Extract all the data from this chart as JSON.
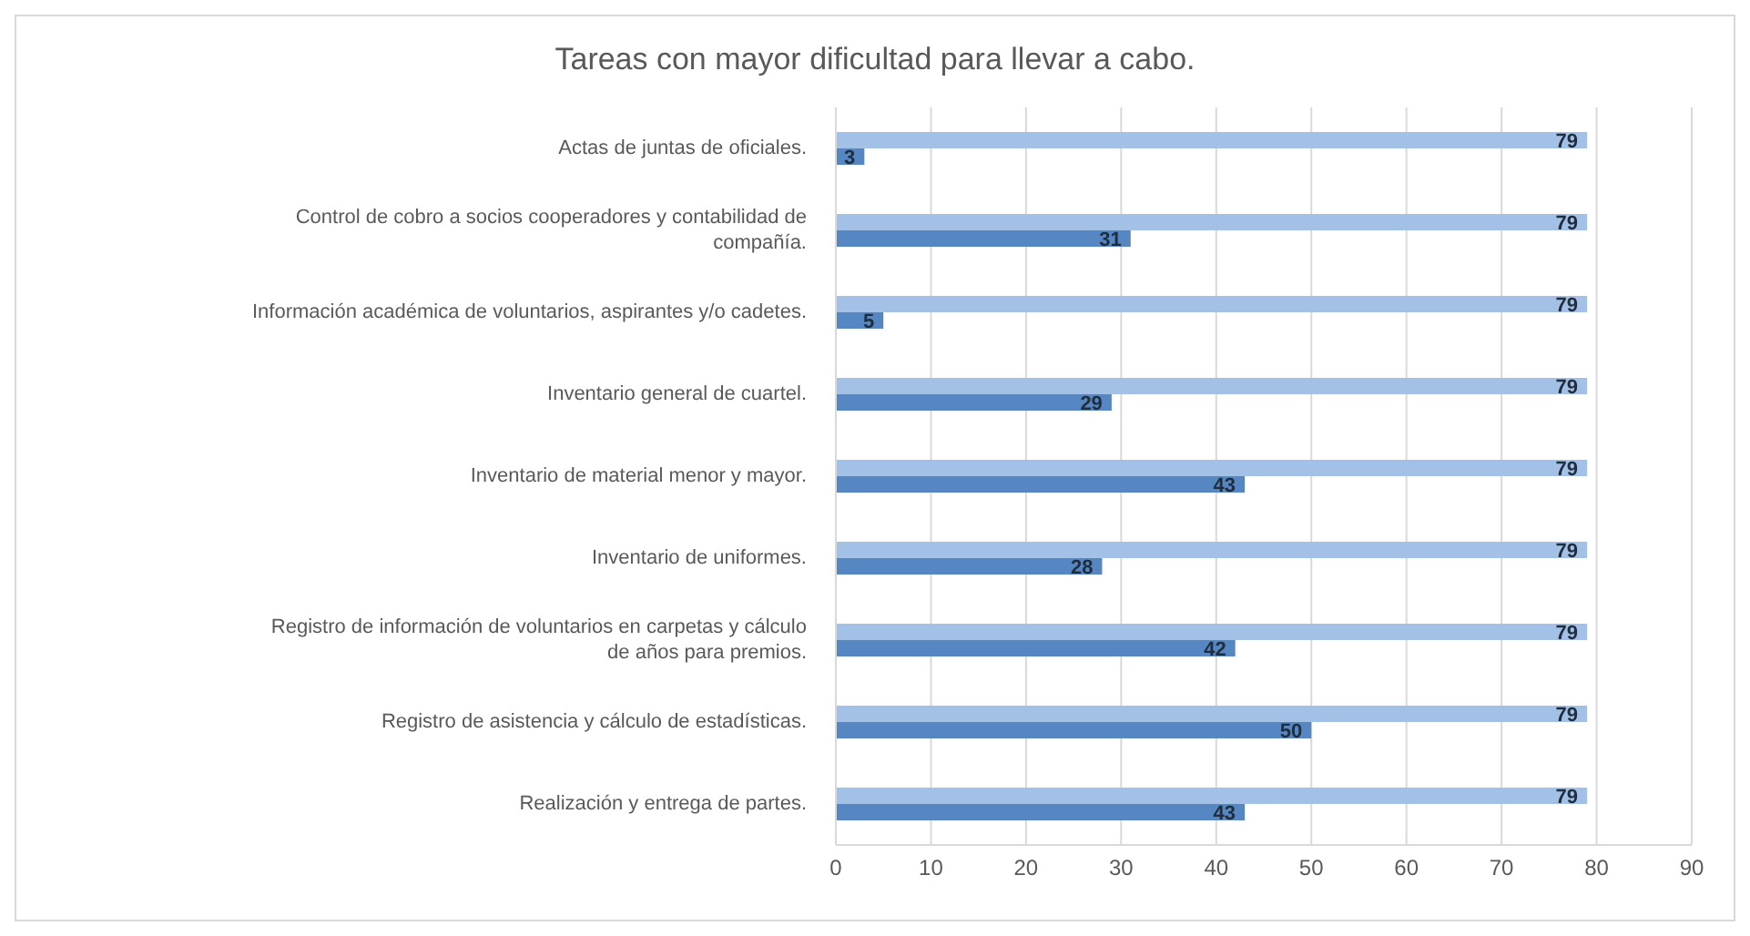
{
  "chart_data": {
    "type": "bar",
    "orientation": "horizontal",
    "title": "Tareas con mayor dificultad para llevar a cabo.",
    "categories": [
      "Actas de juntas de oficiales.",
      "Control de cobro a socios cooperadores y contabilidad de compañía.",
      "Información académica de voluntarios, aspirantes y/o cadetes.",
      "Inventario general de cuartel.",
      "Inventario de material menor y mayor.",
      "Inventario de uniformes.",
      "Registro de información de voluntarios en carpetas y cálculo de años para premios.",
      "Registro de asistencia y cálculo de estadísticas.",
      "Realización y entrega de partes."
    ],
    "series": [
      {
        "color": "#a3c0e6",
        "values": [
          79,
          79,
          79,
          79,
          79,
          79,
          79,
          79,
          79
        ]
      },
      {
        "color": "#5687c2",
        "values": [
          3,
          31,
          5,
          29,
          43,
          28,
          42,
          50,
          43
        ]
      }
    ],
    "xlim": [
      0,
      90
    ],
    "xticks": [
      0,
      10,
      20,
      30,
      40,
      50,
      60,
      70,
      80,
      90
    ],
    "grid": "x",
    "legend": false,
    "data_labels": true
  }
}
